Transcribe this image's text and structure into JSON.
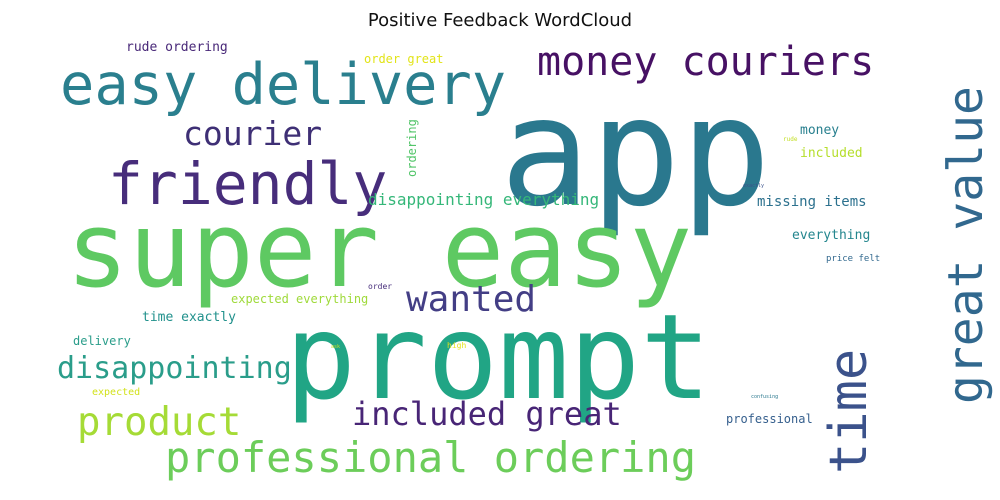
{
  "title": "Positive Feedback WordCloud",
  "palette": {
    "teal": "#2a7f8e",
    "green": "#3dba6e",
    "lime": "#9ed93a",
    "purple": "#472d7b",
    "darkblue": "#3b528b",
    "seafoam": "#22a884",
    "yellow": "#d8e219"
  },
  "words": [
    {
      "text": "app",
      "color": "#2a788e"
    },
    {
      "text": "super easy",
      "color": "#5ec962"
    },
    {
      "text": "prompt",
      "color": "#21a585"
    },
    {
      "text": "easy delivery",
      "color": "#2a7f8e"
    },
    {
      "text": "friendly",
      "color": "#472d7b"
    },
    {
      "text": "money couriers",
      "color": "#471164"
    },
    {
      "text": "great value",
      "color": "#31688e"
    },
    {
      "text": "courier",
      "color": "#3e2f75"
    },
    {
      "text": "time",
      "color": "#3b528b"
    },
    {
      "text": "wanted",
      "color": "#433e85"
    },
    {
      "text": "disappointing",
      "color": "#2a9d8a"
    },
    {
      "text": "product",
      "color": "#a5db36"
    },
    {
      "text": "included great",
      "color": "#482576"
    },
    {
      "text": "professional ordering",
      "color": "#6ccd5a"
    },
    {
      "text": "disappointing everything",
      "color": "#35b779"
    },
    {
      "text": "missing items",
      "color": "#2c718e"
    },
    {
      "text": "everything",
      "color": "#24868e"
    },
    {
      "text": "money",
      "color": "#277f8e"
    },
    {
      "text": "included",
      "color": "#b5de2b"
    },
    {
      "text": "rude ordering",
      "color": "#482878"
    },
    {
      "text": "order great",
      "color": "#e2e418"
    },
    {
      "text": "ordering",
      "color": "#52c569"
    },
    {
      "text": "expected everything",
      "color": "#9fda3a"
    },
    {
      "text": "time exactly",
      "color": "#21918c"
    },
    {
      "text": "delivery",
      "color": "#2a9d8a"
    },
    {
      "text": "expected",
      "color": "#d2e21b"
    },
    {
      "text": "professional",
      "color": "#355f8d"
    },
    {
      "text": "price felt",
      "color": "#31688e"
    },
    {
      "text": "order",
      "color": "#472d7b"
    },
    {
      "text": "high",
      "color": "#e5e419"
    },
    {
      "text": "rude",
      "color": "#c2df23"
    },
    {
      "text": "exactly",
      "color": "#3b528b"
    },
    {
      "text": "confusing",
      "color": "#2a788e"
    },
    {
      "text": "ask",
      "color": "#c8e020"
    }
  ]
}
